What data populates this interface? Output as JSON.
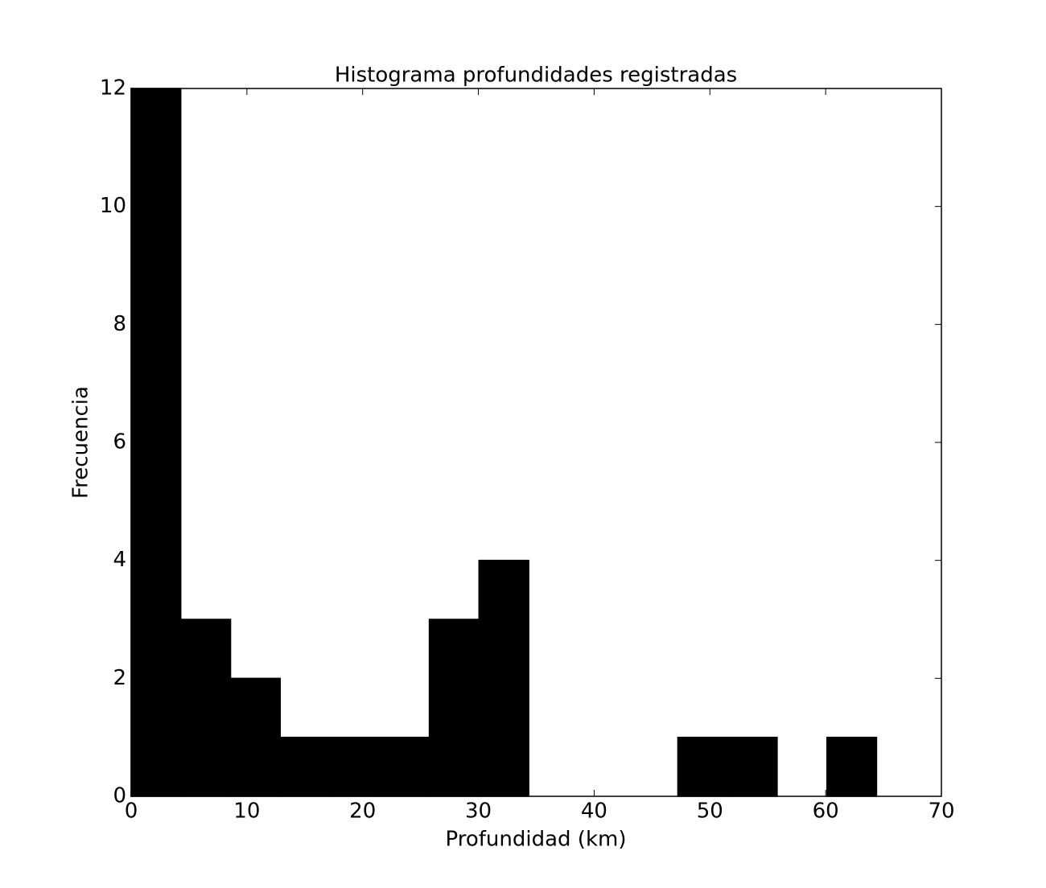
{
  "chart_data": {
    "type": "histogram",
    "title": "Histograma profundidades registradas",
    "xlabel": "Profundidad (km)",
    "ylabel": "Frecuencia",
    "bins": [
      0,
      4.29,
      8.59,
      12.88,
      17.17,
      21.47,
      25.76,
      30.05,
      34.35,
      38.64,
      42.93,
      47.23,
      51.52,
      55.81,
      60.11,
      64.4
    ],
    "values": [
      12,
      3,
      2,
      1,
      1,
      1,
      3,
      4,
      0,
      0,
      0,
      1,
      1,
      0,
      1
    ],
    "color": "#000000",
    "xlim": [
      0,
      70
    ],
    "xticks": [
      0,
      10,
      20,
      30,
      40,
      50,
      60,
      70
    ],
    "ylim": [
      0,
      12
    ],
    "yticks": [
      0,
      2,
      4,
      6,
      8,
      10,
      12
    ],
    "grid": false
  }
}
